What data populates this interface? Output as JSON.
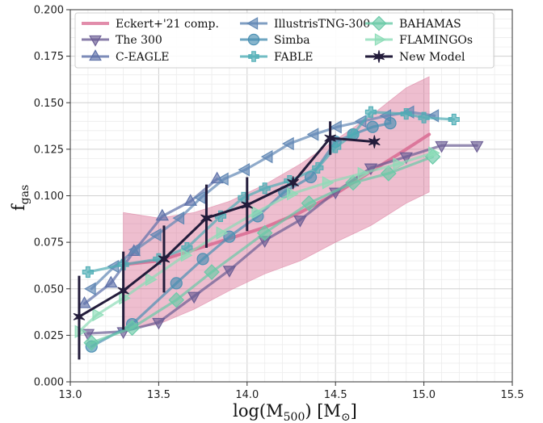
{
  "chart_data": {
    "type": "line",
    "xlabel": "log(M500) [M⊙]",
    "ylabel": "fgas",
    "xlim": [
      13.0,
      15.5
    ],
    "ylim": [
      0.0,
      0.2
    ],
    "x_ticks": [
      "13.0",
      "13.5",
      "14.0",
      "14.5",
      "15.0",
      "15.5"
    ],
    "y_ticks": [
      "0.000",
      "0.025",
      "0.050",
      "0.075",
      "0.100",
      "0.125",
      "0.150",
      "0.175",
      "0.200"
    ],
    "grid": true,
    "legend_position": "top-left",
    "series": [
      {
        "name": "Eckert+'21 comp.",
        "color": "#d96f95",
        "marker": "line",
        "x": [
          13.3,
          13.5,
          13.7,
          13.9,
          14.1,
          14.3,
          14.5,
          14.7,
          14.9,
          15.03
        ],
        "y": [
          0.063,
          0.065,
          0.071,
          0.077,
          0.083,
          0.091,
          0.101,
          0.113,
          0.125,
          0.133
        ],
        "band_upper": [
          0.091,
          0.088,
          0.091,
          0.097,
          0.106,
          0.117,
          0.13,
          0.143,
          0.158,
          0.164
        ],
        "band_lower": [
          0.028,
          0.031,
          0.039,
          0.049,
          0.058,
          0.065,
          0.075,
          0.084,
          0.096,
          0.102
        ]
      },
      {
        "name": "The 300",
        "color": "#6a5c93",
        "marker": "triangle-down",
        "x": [
          13.1,
          13.3,
          13.5,
          13.7,
          13.9,
          14.1,
          14.3,
          14.5,
          14.7,
          14.9,
          15.1,
          15.3
        ],
        "y": [
          0.026,
          0.027,
          0.032,
          0.046,
          0.06,
          0.076,
          0.087,
          0.102,
          0.115,
          0.121,
          0.127,
          0.127
        ]
      },
      {
        "name": "C-EAGLE",
        "color": "#5c6fa8",
        "marker": "triangle-up",
        "x": [
          13.08,
          13.23,
          13.36,
          13.52,
          13.68,
          13.83
        ],
        "y": [
          0.042,
          0.053,
          0.07,
          0.089,
          0.097,
          0.109
        ]
      },
      {
        "name": "IllustrisTNG-300",
        "color": "#5f86b3",
        "marker": "triangle-left",
        "x": [
          13.12,
          13.25,
          13.37,
          13.49,
          13.62,
          13.74,
          13.87,
          13.99,
          14.12,
          14.24,
          14.38,
          14.51,
          14.65,
          14.79,
          14.92,
          15.06
        ],
        "y": [
          0.05,
          0.062,
          0.071,
          0.079,
          0.088,
          0.099,
          0.109,
          0.114,
          0.121,
          0.128,
          0.133,
          0.137,
          0.14,
          0.143,
          0.145,
          0.143
        ]
      },
      {
        "name": "Simba",
        "color": "#4a8fb2",
        "marker": "circle",
        "x": [
          13.12,
          13.35,
          13.6,
          13.75,
          13.9,
          14.06,
          14.21,
          14.36,
          14.5,
          14.6,
          14.71,
          14.81
        ],
        "y": [
          0.019,
          0.031,
          0.053,
          0.066,
          0.078,
          0.089,
          0.102,
          0.11,
          0.129,
          0.133,
          0.137,
          0.139
        ]
      },
      {
        "name": "FABLE",
        "color": "#4fadb5",
        "marker": "plus",
        "x": [
          13.1,
          13.3,
          13.5,
          13.66,
          13.85,
          13.98,
          14.1,
          14.24,
          14.4,
          14.5,
          14.6,
          14.7,
          14.9,
          15.0,
          15.17
        ],
        "y": [
          0.059,
          0.063,
          0.066,
          0.072,
          0.089,
          0.099,
          0.104,
          0.108,
          0.115,
          0.126,
          0.133,
          0.145,
          0.144,
          0.142,
          0.141
        ]
      },
      {
        "name": "BAHAMAS",
        "color": "#68c9a6",
        "marker": "diamond",
        "x": [
          13.12,
          13.35,
          13.6,
          13.8,
          14.1,
          14.35,
          14.6,
          14.8,
          15.05
        ],
        "y": [
          0.021,
          0.029,
          0.044,
          0.059,
          0.08,
          0.096,
          0.107,
          0.112,
          0.121
        ]
      },
      {
        "name": "FLAMINGOs",
        "color": "#8cdcb7",
        "marker": "triangle-right",
        "x": [
          13.05,
          13.15,
          13.3,
          13.45,
          13.65,
          13.85,
          14.05,
          14.25,
          14.45,
          14.65,
          14.85,
          15.05
        ],
        "y": [
          0.027,
          0.036,
          0.045,
          0.055,
          0.068,
          0.08,
          0.091,
          0.101,
          0.107,
          0.112,
          0.117,
          0.123
        ]
      },
      {
        "name": "New Model",
        "color": "#231c3b",
        "marker": "star",
        "x": [
          13.05,
          13.3,
          13.53,
          13.77,
          14.0,
          14.26,
          14.47,
          14.72
        ],
        "y": [
          0.035,
          0.049,
          0.066,
          0.088,
          0.095,
          0.107,
          0.131,
          0.129
        ],
        "err_low": [
          0.012,
          0.028,
          0.048,
          0.072,
          0.081,
          null,
          0.122,
          null
        ],
        "err_high": [
          0.057,
          0.07,
          0.084,
          0.106,
          0.11,
          null,
          0.14,
          null
        ]
      }
    ]
  }
}
